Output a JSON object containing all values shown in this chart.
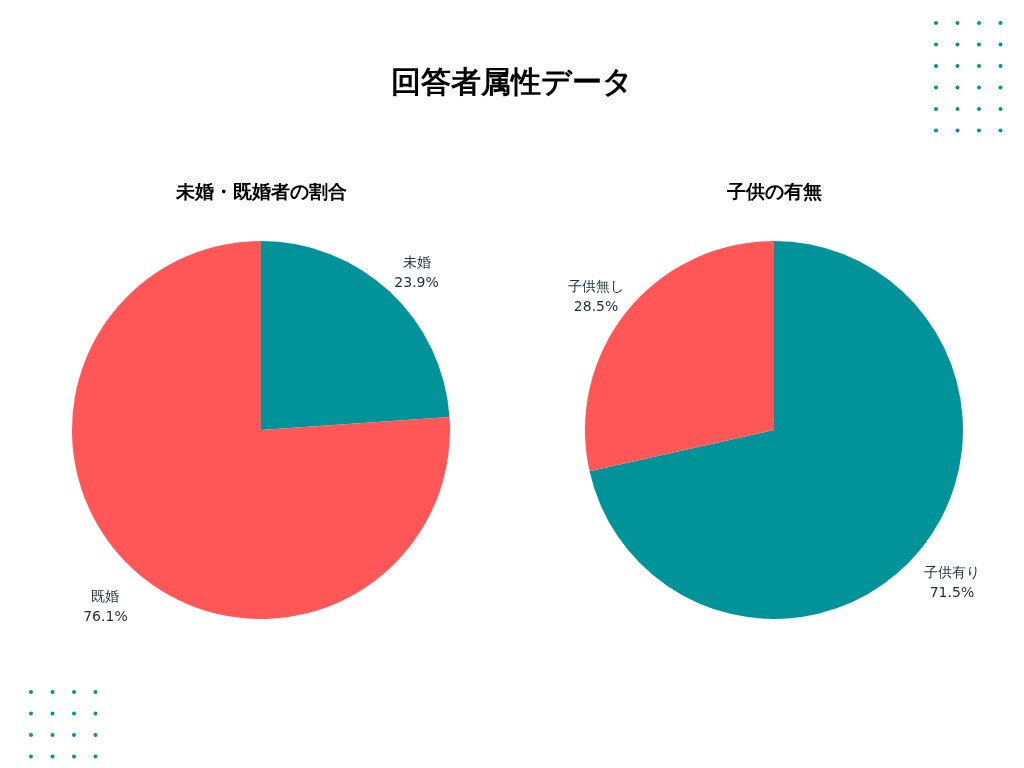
{
  "chart_data": [
    {
      "type": "pie",
      "title": "未婚・既婚者の割合",
      "annotations": [
        "回答者属性データ"
      ],
      "categories": [
        "未婚",
        "既婚"
      ],
      "values": [
        23.9,
        76.1
      ],
      "value_labels": [
        "23.9%",
        "76.1%"
      ],
      "colors": [
        "#00939a",
        "#ff5757"
      ]
    },
    {
      "type": "pie",
      "title": "子供の有無",
      "categories": [
        "子供有り",
        "子供無し"
      ],
      "values": [
        71.5,
        28.5
      ],
      "value_labels": [
        "71.5%",
        "28.5%"
      ],
      "colors": [
        "#00939a",
        "#ff5757"
      ]
    }
  ]
}
